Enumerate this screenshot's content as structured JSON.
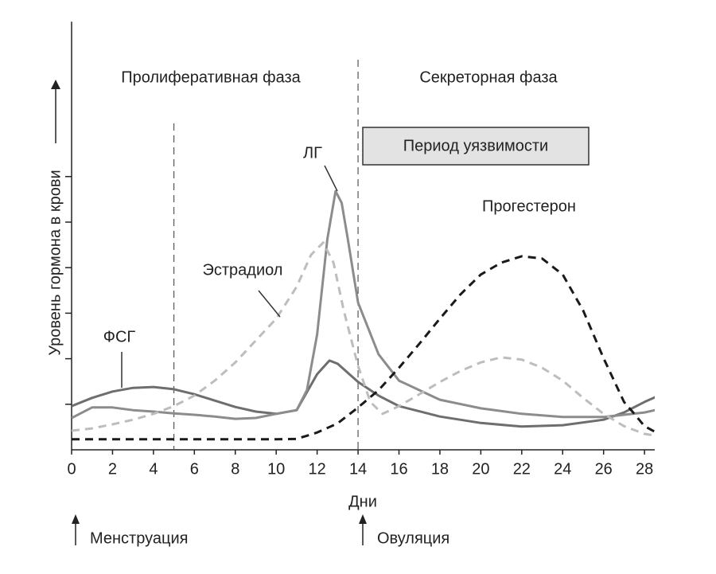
{
  "chart_data": {
    "type": "line",
    "y_label": "Уровень гормона в крови",
    "x_label": "Дни",
    "phases": [
      "Пролиферативная фаза",
      "Секреторная фаза"
    ],
    "highlight": "Период уязвимости",
    "events": [
      "Менструация",
      "Овуляция"
    ],
    "reference_lines": [
      5,
      14
    ],
    "xlim": [
      0,
      28.5
    ],
    "xticks": [
      0,
      2,
      4,
      6,
      8,
      10,
      12,
      14,
      16,
      18,
      20,
      22,
      24,
      26,
      28
    ],
    "ylim": [
      0,
      9.4
    ],
    "yticks": [
      1,
      2,
      3,
      4,
      5,
      6
    ],
    "series": [
      {
        "name": "ФСГ",
        "color": "#6e6e6e",
        "dashed": false,
        "x": [
          0,
          1,
          2,
          3,
          4,
          5,
          6,
          7,
          8,
          9,
          10,
          11,
          12,
          12.6,
          13,
          14,
          15,
          16,
          18,
          20,
          22,
          24,
          26,
          27,
          28,
          28.7
        ],
        "values": [
          0.96,
          1.14,
          1.28,
          1.36,
          1.38,
          1.33,
          1.22,
          1.08,
          0.94,
          0.84,
          0.79,
          0.87,
          1.66,
          1.96,
          1.89,
          1.49,
          1.19,
          0.96,
          0.73,
          0.59,
          0.51,
          0.54,
          0.66,
          0.82,
          1.05,
          1.19
        ]
      },
      {
        "name": "ЛГ",
        "color": "#8c8c8c",
        "dashed": false,
        "x": [
          0,
          1,
          2,
          3,
          4,
          5,
          6,
          7,
          8,
          9,
          10,
          11,
          11.5,
          12,
          12.5,
          12.9,
          13.2,
          13.5,
          14,
          15,
          16,
          18,
          20,
          22,
          24,
          26,
          28,
          28.7
        ],
        "values": [
          0.7,
          0.93,
          0.93,
          0.87,
          0.84,
          0.8,
          0.77,
          0.73,
          0.68,
          0.7,
          0.79,
          0.87,
          1.31,
          2.53,
          4.63,
          5.68,
          5.42,
          4.63,
          3.23,
          2.1,
          1.52,
          1.1,
          0.91,
          0.79,
          0.72,
          0.72,
          0.82,
          0.89
        ]
      },
      {
        "name": "Эстрадиол",
        "color": "#bdbdbd",
        "dashed": true,
        "x": [
          0,
          1,
          2,
          3,
          4,
          5,
          6,
          7,
          8,
          9,
          10,
          11,
          11.7,
          12.3,
          12.8,
          13.3,
          14,
          14.6,
          15.2,
          16,
          17,
          18,
          19,
          20,
          21,
          22,
          23,
          24,
          25,
          26,
          27,
          28,
          28.7
        ],
        "values": [
          0.42,
          0.47,
          0.56,
          0.66,
          0.79,
          0.96,
          1.19,
          1.52,
          1.92,
          2.4,
          2.88,
          3.58,
          4.28,
          4.55,
          4.11,
          3.06,
          1.84,
          1.05,
          0.79,
          0.96,
          1.22,
          1.49,
          1.73,
          1.92,
          2.03,
          1.98,
          1.8,
          1.52,
          1.14,
          0.79,
          0.52,
          0.35,
          0.3
        ]
      },
      {
        "name": "Прогестерон",
        "color": "#1a1a1a",
        "dashed": true,
        "x": [
          0,
          2,
          4,
          6,
          8,
          10,
          11,
          12,
          13,
          14,
          15,
          16,
          17,
          18,
          19,
          20,
          21,
          22,
          23,
          24,
          25,
          26,
          27,
          27.5,
          28,
          28.7
        ],
        "values": [
          0.23,
          0.23,
          0.23,
          0.23,
          0.23,
          0.23,
          0.24,
          0.38,
          0.58,
          0.93,
          1.31,
          1.8,
          2.33,
          2.88,
          3.41,
          3.85,
          4.11,
          4.25,
          4.2,
          3.85,
          3.06,
          2.01,
          1.05,
          0.79,
          0.52,
          0.35
        ]
      }
    ]
  }
}
